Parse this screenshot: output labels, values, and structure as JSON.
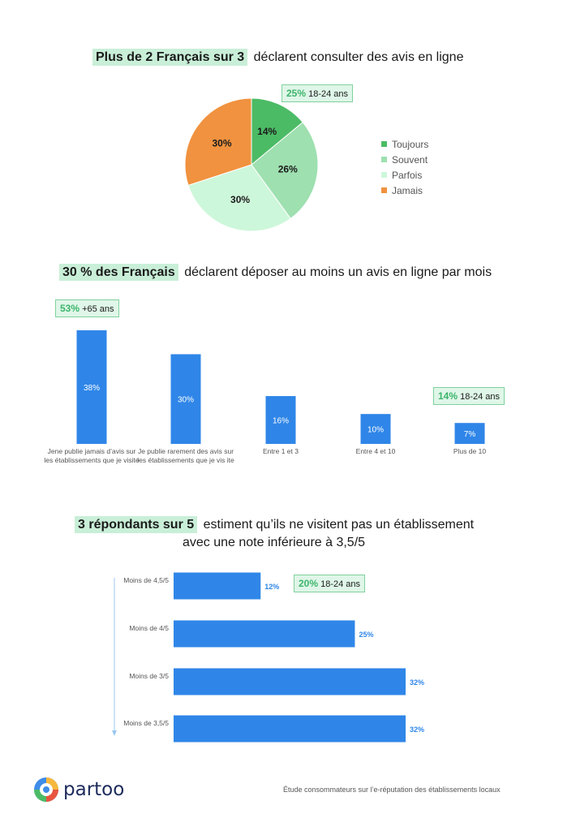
{
  "section1": {
    "highlight": "Plus de 2 Français sur 3",
    "rest": "déclarent consulter des avis en ligne",
    "badge": {
      "value": "25%",
      "text": "18-24 ans"
    }
  },
  "section2": {
    "highlight": "30 % des Français",
    "rest": "déclarent déposer au moins un avis en ligne par mois",
    "badge1": {
      "value": "53%",
      "text": "+65 ans"
    },
    "badge2": {
      "value": "14%",
      "text": "18-24 ans"
    }
  },
  "section3": {
    "highlight": "3 répondants sur 5",
    "rest_line1": "estiment qu’ils ne visitent pas un établissement",
    "rest_line2": "avec une note inférieure à 3,5/5",
    "badge": {
      "value": "20%",
      "text": "18-24 ans"
    }
  },
  "footer": {
    "brand": "partoo",
    "caption": "Étude consommateurs sur l’e-réputation des établissements locaux"
  },
  "chart_data": [
    {
      "type": "pie",
      "categories": [
        "Toujours",
        "Souvent",
        "Parfois",
        "Jamais"
      ],
      "values": [
        14,
        26,
        30,
        30
      ],
      "data_labels": [
        "14%",
        "26%",
        "30%",
        "30%"
      ],
      "colors": [
        "#4cbb65",
        "#9ee0b0",
        "#cdf7da",
        "#f0923f"
      ],
      "legend": "right"
    },
    {
      "type": "bar",
      "categories": [
        "Jene publie jamais d’avis sur les établissements que je visite",
        "Je publie rarement des avis sur les établissements que je vis ite",
        "Entre 1 et 3",
        "Entre 4 et 10",
        "Plus de 10"
      ],
      "values": [
        38,
        30,
        16,
        10,
        7
      ],
      "data_labels": [
        "38%",
        "30%",
        "16%",
        "10%",
        "7%"
      ],
      "color": "#2f86e8"
    },
    {
      "type": "bar",
      "orientation": "horizontal",
      "categories": [
        "Moins de 4,5/5",
        "Moins de 4/5",
        "Moins de 3/5",
        "Moins de 3,5/5"
      ],
      "values": [
        12,
        25,
        32,
        32
      ],
      "data_labels": [
        "12%",
        "25%",
        "32%",
        "32%"
      ],
      "color": "#2f86e8"
    }
  ]
}
